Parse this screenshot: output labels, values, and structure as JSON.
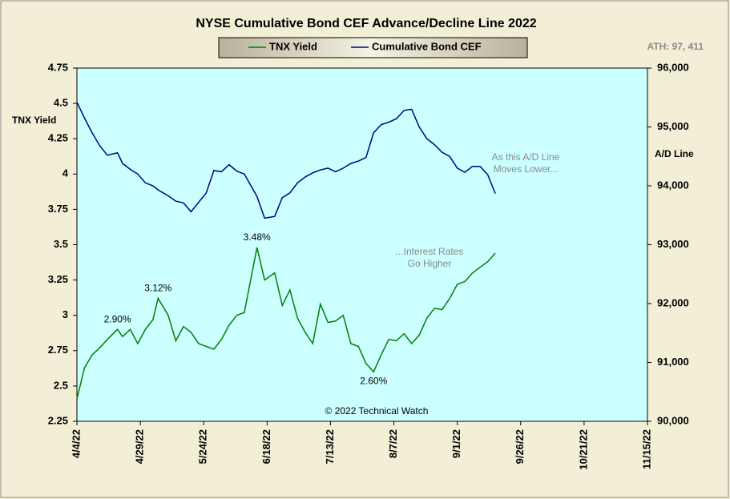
{
  "chart_data": {
    "type": "line",
    "title": "NYSE Cumulative  Bond CEF Advance/Decline  Line 2022",
    "ylabel": "TNX Yield",
    "y2label": "A/D Line",
    "annotations": [
      {
        "lines": [
          "ATH: 97, 411"
        ]
      },
      {
        "lines": [
          "As this A/D Line",
          "Moves Lower..."
        ]
      },
      {
        "lines": [
          "...Interest Rates",
          "Go Higher"
        ]
      },
      {
        "lines": [
          "© 2022 Technical Watch"
        ]
      }
    ],
    "x": [
      "2022-04-04",
      "2022-04-07",
      "2022-04-10",
      "2022-04-13",
      "2022-04-16",
      "2022-04-20",
      "2022-04-22",
      "2022-04-25",
      "2022-04-28",
      "2022-05-01",
      "2022-05-04",
      "2022-05-06",
      "2022-05-10",
      "2022-05-13",
      "2022-05-16",
      "2022-05-19",
      "2022-05-22",
      "2022-05-25",
      "2022-05-28",
      "2022-05-31",
      "2022-06-03",
      "2022-06-06",
      "2022-06-09",
      "2022-06-14",
      "2022-06-17",
      "2022-06-21",
      "2022-06-24",
      "2022-06-27",
      "2022-06-30",
      "2022-07-03",
      "2022-07-06",
      "2022-07-09",
      "2022-07-12",
      "2022-07-15",
      "2022-07-18",
      "2022-07-21",
      "2022-07-24",
      "2022-07-27",
      "2022-07-30",
      "2022-08-02",
      "2022-08-05",
      "2022-08-08",
      "2022-08-11",
      "2022-08-14",
      "2022-08-17",
      "2022-08-20",
      "2022-08-23",
      "2022-08-26",
      "2022-08-29",
      "2022-09-01",
      "2022-09-04",
      "2022-09-07",
      "2022-09-10",
      "2022-09-13",
      "2022-09-16"
    ],
    "series": [
      {
        "name": "TNX Yield",
        "color": "#008000",
        "axis": "y",
        "values": [
          2.41,
          2.63,
          2.72,
          2.77,
          2.83,
          2.9,
          2.85,
          2.9,
          2.8,
          2.9,
          2.97,
          3.12,
          3.0,
          2.82,
          2.92,
          2.88,
          2.8,
          2.78,
          2.76,
          2.83,
          2.93,
          3.0,
          3.02,
          3.48,
          3.25,
          3.3,
          3.07,
          3.18,
          2.98,
          2.88,
          2.8,
          3.08,
          2.95,
          2.96,
          3.0,
          2.8,
          2.78,
          2.66,
          2.6,
          2.72,
          2.83,
          2.82,
          2.87,
          2.8,
          2.86,
          2.98,
          3.05,
          3.04,
          3.12,
          3.22,
          3.24,
          3.3,
          3.34,
          3.38,
          3.44
        ],
        "value_labels": [
          null,
          null,
          null,
          null,
          null,
          "2.90%",
          null,
          null,
          null,
          null,
          null,
          "3.12%",
          null,
          null,
          null,
          null,
          null,
          null,
          null,
          null,
          null,
          null,
          null,
          "3.48%",
          null,
          null,
          null,
          null,
          null,
          null,
          null,
          null,
          null,
          null,
          null,
          null,
          null,
          null,
          "2.60%",
          null,
          null,
          null,
          null,
          null,
          null,
          null,
          null,
          null,
          null,
          null,
          null,
          null,
          null,
          null,
          null
        ]
      },
      {
        "name": "Cumulative Bond CEF",
        "color": "#000080",
        "axis": "y2",
        "values": [
          95420,
          95150,
          94900,
          94680,
          94520,
          94560,
          94380,
          94280,
          94200,
          94050,
          94000,
          93930,
          93830,
          93740,
          93710,
          93560,
          93720,
          93880,
          94260,
          94240,
          94360,
          94250,
          94200,
          93820,
          93450,
          93480,
          93800,
          93880,
          94050,
          94150,
          94220,
          94270,
          94300,
          94240,
          94300,
          94380,
          94420,
          94480,
          94900,
          95040,
          95080,
          95140,
          95280,
          95300,
          95000,
          94800,
          94700,
          94570,
          94500,
          94300,
          94230,
          94330,
          94330,
          94190,
          93870
        ]
      }
    ],
    "xlim": [
      "2022-04-04",
      "2022-11-15"
    ],
    "xticks": [
      {
        "value": "2022-04-04",
        "label": "4/4/22"
      },
      {
        "value": "2022-04-29",
        "label": "4/29/22"
      },
      {
        "value": "2022-05-24",
        "label": "5/24/22"
      },
      {
        "value": "2022-06-18",
        "label": "6/18/22"
      },
      {
        "value": "2022-07-13",
        "label": "7/13/22"
      },
      {
        "value": "2022-08-07",
        "label": "8/7/22"
      },
      {
        "value": "2022-09-01",
        "label": "9/1/22"
      },
      {
        "value": "2022-09-26",
        "label": "9/26/22"
      },
      {
        "value": "2022-10-21",
        "label": "10/21/22"
      },
      {
        "value": "2022-11-15",
        "label": "11/15/22"
      }
    ],
    "ylim": [
      2.25,
      4.75
    ],
    "yticks": [
      2.25,
      2.5,
      2.75,
      3,
      3.25,
      3.5,
      3.75,
      4,
      4.25,
      4.5,
      4.75
    ],
    "y2lim": [
      90000,
      96000
    ],
    "y2ticks": [
      {
        "value": 90000,
        "label": "90,000"
      },
      {
        "value": 91000,
        "label": "91,000"
      },
      {
        "value": 92000,
        "label": "92,000"
      },
      {
        "value": 93000,
        "label": "93,000"
      },
      {
        "value": 94000,
        "label": "94,000"
      },
      {
        "value": 95000,
        "label": "95,000"
      },
      {
        "value": 96000,
        "label": "96,000"
      }
    ],
    "grid": false,
    "plot_background": "#ccffff"
  }
}
